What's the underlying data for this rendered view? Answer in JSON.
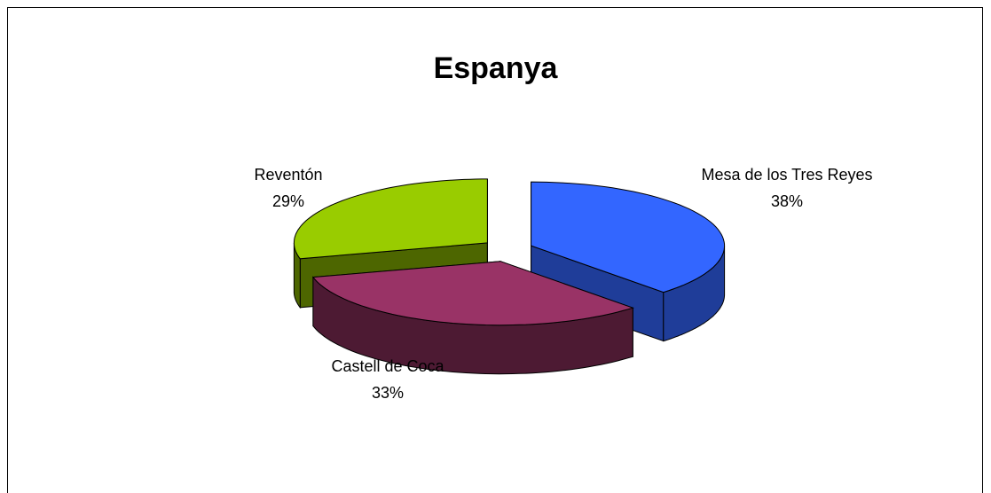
{
  "chart_data": {
    "type": "pie",
    "title": "Espanya",
    "categories": [
      "Mesa de los Tres Reyes",
      "Castell de Coca",
      "Reventón"
    ],
    "values": [
      38,
      33,
      29
    ],
    "value_labels": [
      "38%",
      "33%",
      "29%"
    ],
    "colors": [
      "#3366ff",
      "#993366",
      "#99cc00"
    ],
    "side_colors": [
      "#1f3d99",
      "#4d1a33",
      "#4d6600"
    ]
  }
}
